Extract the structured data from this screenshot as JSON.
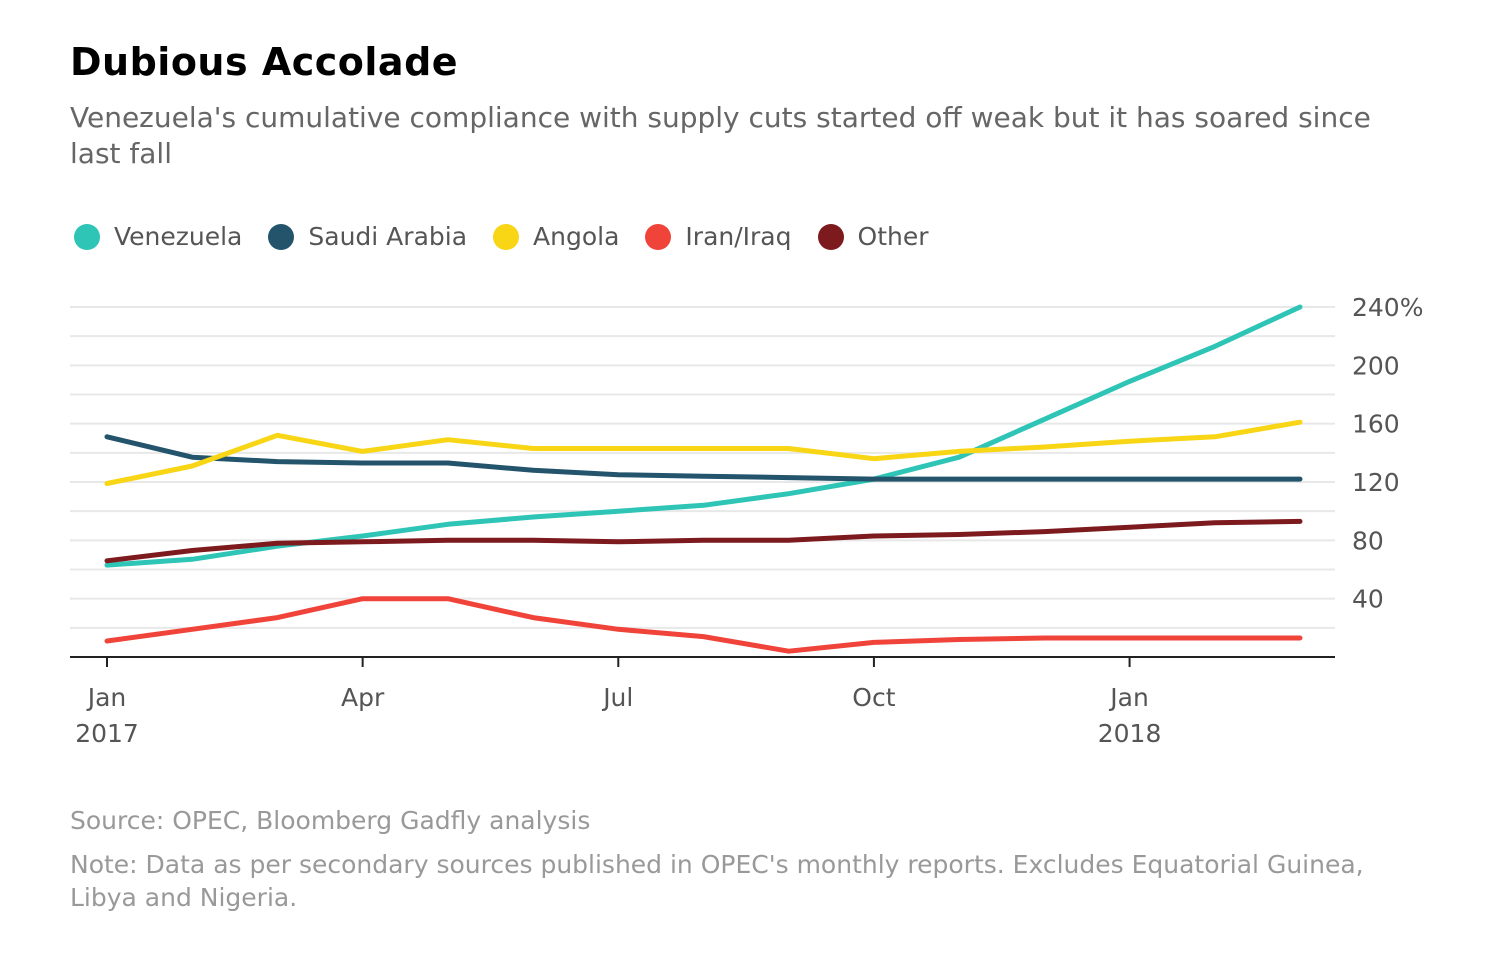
{
  "title": "Dubious Accolade",
  "subtitle": "Venezuela's cumulative compliance with supply cuts started off weak but it has soared since last fall",
  "source": "Source: OPEC, Bloomberg Gadfly analysis",
  "note": "Note: Data as per secondary sources published in OPEC's monthly reports. Excludes Equatorial Guinea, Libya and Nigeria.",
  "legend": [
    {
      "label": "Venezuela",
      "color": "#2ec4b6"
    },
    {
      "label": "Saudi Arabia",
      "color": "#23546b"
    },
    {
      "label": "Angola",
      "color": "#f8d515"
    },
    {
      "label": "Iran/Iraq",
      "color": "#f0433a"
    },
    {
      "label": "Other",
      "color": "#7c1a1e"
    }
  ],
  "chart_data": {
    "type": "line",
    "x": [
      "2017-01",
      "2017-02",
      "2017-03",
      "2017-04",
      "2017-05",
      "2017-06",
      "2017-07",
      "2017-08",
      "2017-09",
      "2017-10",
      "2017-11",
      "2017-12",
      "2018-01",
      "2018-02",
      "2018-03"
    ],
    "x_ticks": [
      {
        "value": "2017-01",
        "label": "Jan",
        "sublabel": "2017"
      },
      {
        "value": "2017-04",
        "label": "Apr",
        "sublabel": ""
      },
      {
        "value": "2017-07",
        "label": "Jul",
        "sublabel": ""
      },
      {
        "value": "2017-10",
        "label": "Oct",
        "sublabel": ""
      },
      {
        "value": "2018-01",
        "label": "Jan",
        "sublabel": "2018"
      }
    ],
    "y_ticks": [
      {
        "value": 40,
        "label": "40"
      },
      {
        "value": 80,
        "label": "80"
      },
      {
        "value": 120,
        "label": "120"
      },
      {
        "value": 160,
        "label": "160"
      },
      {
        "value": 200,
        "label": "200"
      },
      {
        "value": 240,
        "label": "240%"
      }
    ],
    "ylim": [
      0,
      240
    ],
    "y_unit": "%",
    "y_axis_side": "right",
    "grid": true,
    "legend_position": "top-left",
    "series": [
      {
        "name": "Venezuela",
        "color": "#2ec4b6",
        "values": [
          63,
          67,
          76,
          83,
          91,
          96,
          100,
          104,
          112,
          122,
          137,
          163,
          189,
          213,
          240
        ]
      },
      {
        "name": "Saudi Arabia",
        "color": "#23546b",
        "values": [
          151,
          137,
          134,
          133,
          133,
          128,
          125,
          124,
          123,
          122,
          122,
          122,
          122,
          122,
          122
        ]
      },
      {
        "name": "Angola",
        "color": "#f8d515",
        "values": [
          119,
          131,
          152,
          141,
          149,
          143,
          143,
          143,
          143,
          136,
          141,
          144,
          148,
          151,
          161
        ]
      },
      {
        "name": "Iran/Iraq",
        "color": "#f0433a",
        "values": [
          11,
          19,
          27,
          40,
          40,
          27,
          19,
          14,
          4,
          10,
          12,
          13,
          13,
          13,
          13
        ]
      },
      {
        "name": "Other",
        "color": "#7c1a1e",
        "values": [
          66,
          73,
          78,
          79,
          80,
          80,
          79,
          80,
          80,
          83,
          84,
          86,
          89,
          92,
          93
        ]
      }
    ]
  }
}
